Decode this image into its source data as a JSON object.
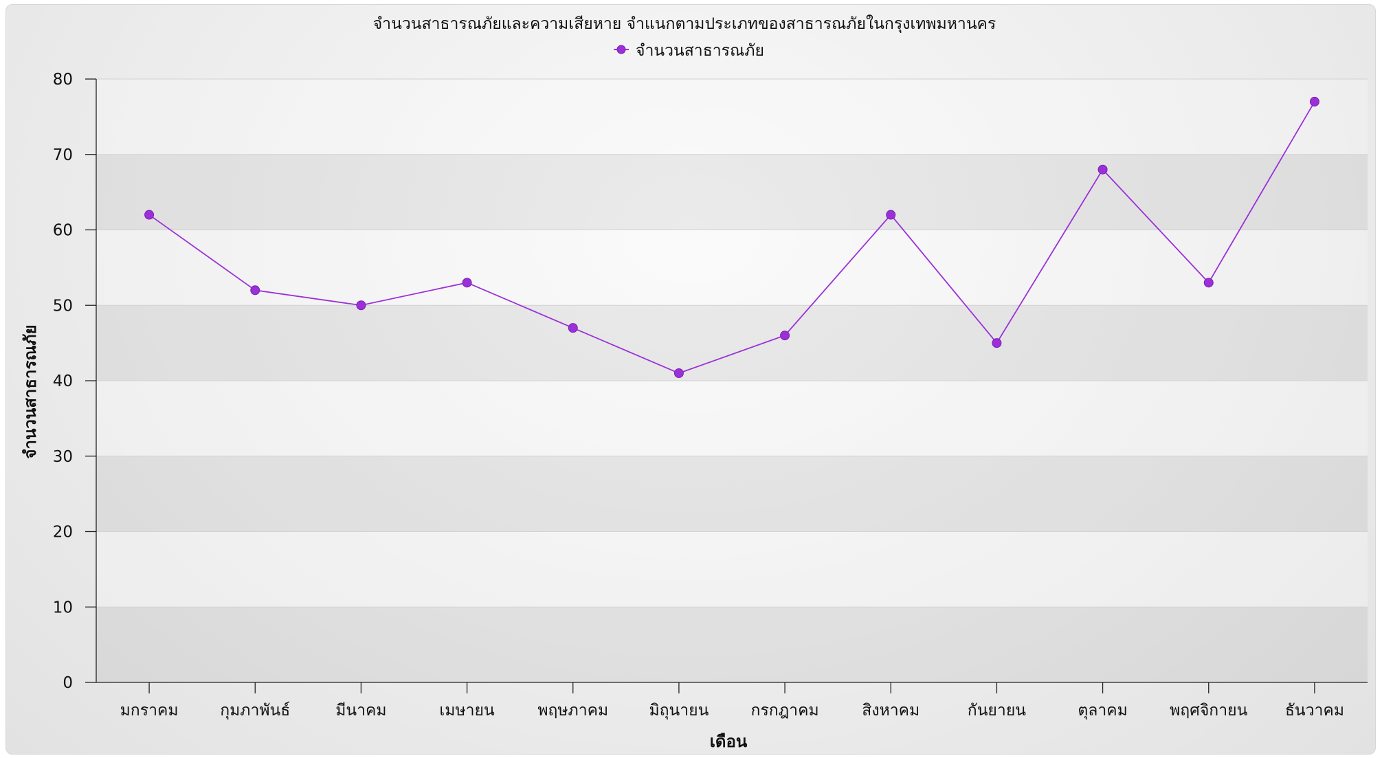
{
  "chart_data": {
    "type": "line",
    "title": "จำนวนสาธารณภัยและความเสียหาย จำแนกตามประเภทของสาธารณภัยในกรุงเทพมหานคร",
    "xlabel": "เดือน",
    "ylabel": "จำนวนสาธารณภัย",
    "ylim": [
      0,
      80
    ],
    "yticks": [
      0,
      10,
      20,
      30,
      40,
      50,
      60,
      70,
      80
    ],
    "grid": true,
    "legend_position": "top",
    "categories": [
      "มกราคม",
      "กุมภาพันธ์",
      "มีนาคม",
      "เมษายน",
      "พฤษภาคม",
      "มิถุนายน",
      "กรกฎาคม",
      "สิงหาคม",
      "กันยายน",
      "ตุลาคม",
      "พฤศจิกายน",
      "ธันวาคม"
    ],
    "series": [
      {
        "name": "จำนวนสาธารณภัย",
        "color": "#9b30d9",
        "values": [
          62,
          52,
          50,
          53,
          47,
          41,
          46,
          62,
          45,
          68,
          53,
          77
        ]
      }
    ]
  }
}
